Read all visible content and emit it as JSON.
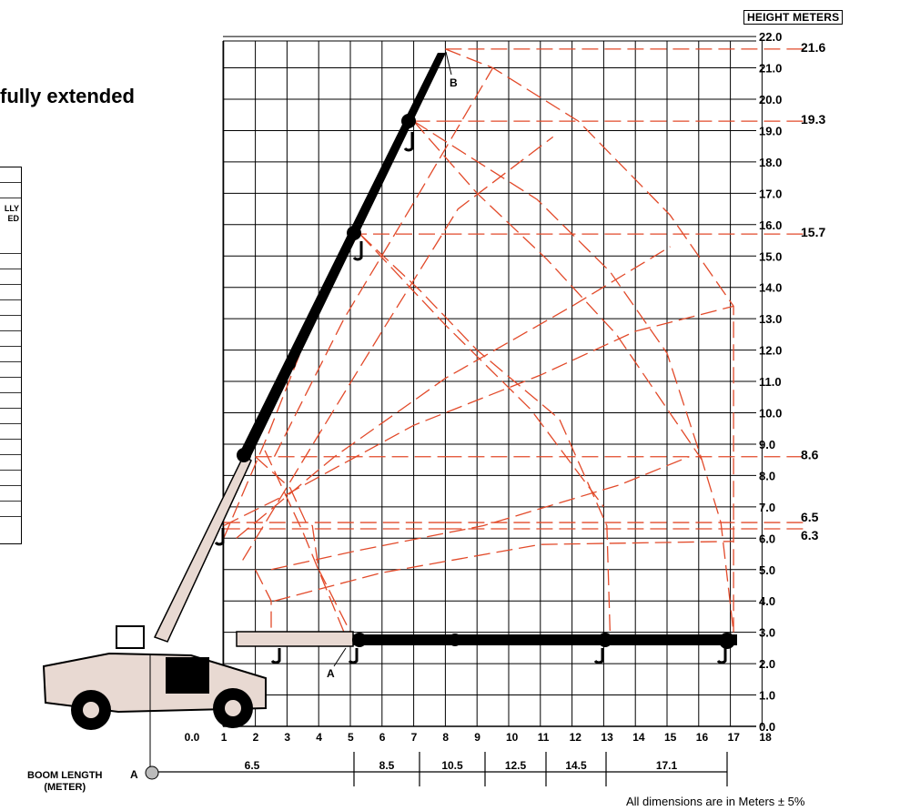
{
  "title": "fully extended",
  "legend_fragment": "LLY ED",
  "height_axis_label": "HEIGHT METERS",
  "boom_axis_label_line1": "BOOM LENGTH",
  "boom_axis_label_line2": "(METER)",
  "footnote": "All dimensions are in Meters ± 5%",
  "point_a_label": "A",
  "point_b_label": "B",
  "grid_color": "#000000",
  "envelope_color": "#e24a2a",
  "x_ticks": [
    "0.0",
    "1",
    "2",
    "3",
    "4",
    "5",
    "6",
    "7",
    "8",
    "9",
    "10",
    "11",
    "12",
    "13",
    "14",
    "15",
    "16",
    "17",
    "18"
  ],
  "y_ticks": [
    "0.0",
    "1.0",
    "2.0",
    "3.0",
    "4.0",
    "5.0",
    "6.0",
    "7.0",
    "8.0",
    "9.0",
    "10.0",
    "11.0",
    "12.0",
    "13.0",
    "14.0",
    "15.0",
    "16.0",
    "17.0",
    "18.0",
    "19.0",
    "20.0",
    "21.0",
    "22.0"
  ],
  "right_heights": [
    "21.6",
    "19.3",
    "15.7",
    "8.6",
    "6.5",
    "6.3"
  ],
  "boom_segments": [
    "6.5",
    "8.5",
    "10.5",
    "12.5",
    "14.5",
    "17.1"
  ]
}
